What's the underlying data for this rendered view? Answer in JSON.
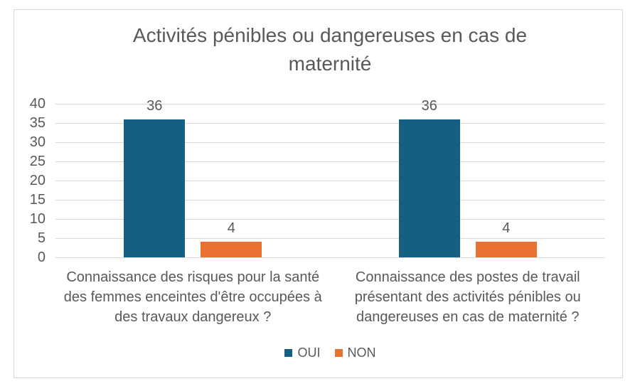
{
  "chart_data": {
    "type": "bar",
    "title": "Activités pénibles ou dangereuses en cas de maternité",
    "xlabel": "",
    "ylabel": "",
    "categories": [
      "Connaissance des risques pour la santé des femmes enceintes d'être occupées à des travaux dangereux ?",
      "Connaissance des postes de travail présentant des activités pénibles ou dangereuses en cas de maternité ?"
    ],
    "series": [
      {
        "name": "OUI",
        "color": "#156082",
        "values": [
          36,
          36
        ]
      },
      {
        "name": "NON",
        "color": "#E97132",
        "values": [
          4,
          4
        ]
      }
    ],
    "ylim": [
      0,
      40
    ],
    "yticks": [
      0,
      5,
      10,
      15,
      20,
      25,
      30,
      35,
      40
    ],
    "grid": true,
    "data_labels": true,
    "legend_position": "bottom",
    "colors": {
      "text": "#595959",
      "grid": "#D9D9D9",
      "frame_border": "#D9D9D9",
      "background": "#FFFFFF"
    }
  }
}
